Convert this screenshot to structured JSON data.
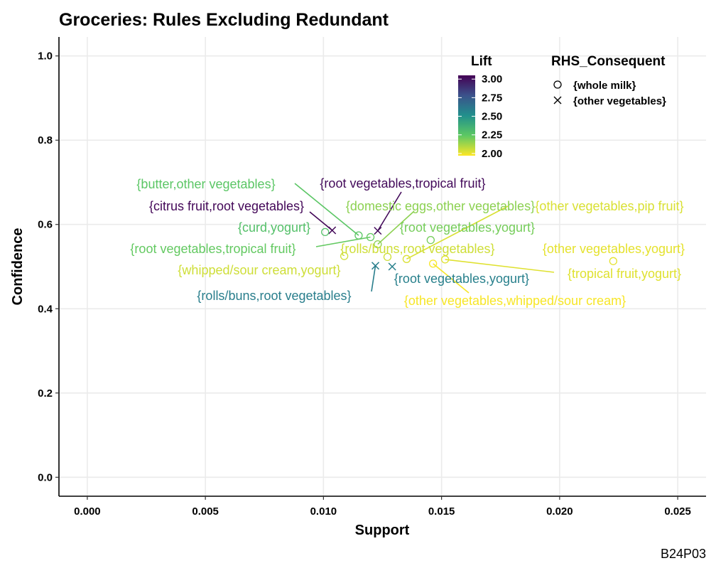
{
  "chart_data": {
    "type": "scatter",
    "title": "Groceries: Rules Excluding Redundant",
    "xlabel": "Support",
    "ylabel": "Confidence",
    "xlim": [
      -0.0012,
      0.0262
    ],
    "ylim": [
      -0.045,
      1.045
    ],
    "x_ticks": [
      "0.000",
      "0.005",
      "0.010",
      "0.015",
      "0.020",
      "0.025"
    ],
    "x_tick_values": [
      0,
      0.005,
      0.01,
      0.015,
      0.02,
      0.025
    ],
    "y_ticks": [
      "0.0",
      "0.2",
      "0.4",
      "0.6",
      "0.8",
      "1.0"
    ],
    "y_tick_values": [
      0,
      0.2,
      0.4,
      0.6,
      0.8,
      1.0
    ],
    "grid": true,
    "color_legend": {
      "title": "Lift",
      "ticks": [
        "3.00",
        "2.75",
        "2.50",
        "2.25",
        "2.00"
      ],
      "tick_values": [
        3.0,
        2.75,
        2.5,
        2.25,
        2.0
      ],
      "range": [
        1.97,
        3.05
      ],
      "palette": "viridis (reversed)",
      "placement": "top-right"
    },
    "shape_legend": {
      "title": "RHS_Consequent",
      "entries": [
        {
          "label": "{whole milk}",
          "shape": "circle"
        },
        {
          "label": "{other vegetables}",
          "shape": "x"
        }
      ],
      "placement": "top-right"
    },
    "points": [
      {
        "lhs": "{butter,other vegetables}",
        "rhs": "{whole milk}",
        "support": 0.01149,
        "confidence": 0.574,
        "lift": 2.25
      },
      {
        "lhs": "{root vegetables,tropical fruit}",
        "rhs": "{other vegetables}",
        "support": 0.0123,
        "confidence": 0.585,
        "lift": 3.02
      },
      {
        "lhs": "{citrus fruit,root vegetables}",
        "rhs": "{other vegetables}",
        "support": 0.01037,
        "confidence": 0.586,
        "lift": 3.03
      },
      {
        "lhs": "{domestic eggs,other vegetables}",
        "rhs": "{whole milk}",
        "support": 0.0123,
        "confidence": 0.553,
        "lift": 2.16
      },
      {
        "lhs": "{curd,yogurt}",
        "rhs": "{whole milk}",
        "support": 0.01007,
        "confidence": 0.582,
        "lift": 2.28
      },
      {
        "lhs": "{root vegetables,yogurt}",
        "rhs": "{whole milk}",
        "support": 0.01454,
        "confidence": 0.563,
        "lift": 2.2
      },
      {
        "lhs": "{root vegetables,tropical fruit}",
        "rhs": "{whole milk}",
        "support": 0.01199,
        "confidence": 0.57,
        "lift": 2.23
      },
      {
        "lhs": "{rolls/buns,root vegetables}",
        "rhs": "{whole milk}",
        "support": 0.01271,
        "confidence": 0.523,
        "lift": 2.05
      },
      {
        "lhs": "{other vegetables,pip fruit}",
        "rhs": "{whole milk}",
        "support": 0.01352,
        "confidence": 0.518,
        "lift": 2.03
      },
      {
        "lhs": "{whipped/sour cream,yogurt}",
        "rhs": "{whole milk}",
        "support": 0.01088,
        "confidence": 0.525,
        "lift": 2.05
      },
      {
        "lhs": "{other vegetables,yogurt}",
        "rhs": "{whole milk}",
        "support": 0.02227,
        "confidence": 0.513,
        "lift": 2.01
      },
      {
        "lhs": "{tropical fruit,yogurt}",
        "rhs": "{whole milk}",
        "support": 0.01515,
        "confidence": 0.517,
        "lift": 2.02
      },
      {
        "lhs": "{other vegetables,whipped/sour cream}",
        "rhs": "{whole milk}",
        "support": 0.01464,
        "confidence": 0.507,
        "lift": 1.98
      },
      {
        "lhs": "{root vegetables,yogurt}",
        "rhs": "{other vegetables}",
        "support": 0.01291,
        "confidence": 0.5,
        "lift": 2.58
      },
      {
        "lhs": "{rolls/buns,root vegetables}",
        "rhs": "{other vegetables}",
        "support": 0.0122,
        "confidence": 0.502,
        "lift": 2.59
      }
    ]
  },
  "caption": "B24P03"
}
